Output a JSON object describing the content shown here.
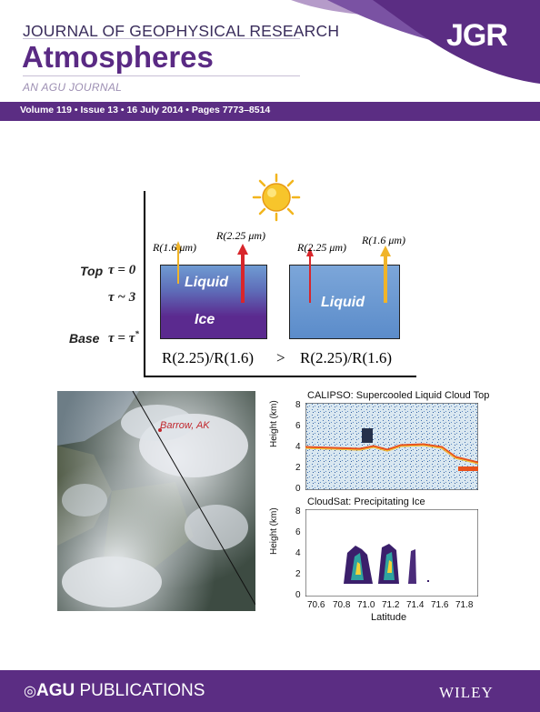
{
  "header": {
    "journal_title": "JOURNAL OF GEOPHYSICAL RESEARCH",
    "section": "Atmospheres",
    "tagline": "AN AGU JOURNAL",
    "badge": "JGR",
    "issue_info": "Volume 119 • Issue 13 • 16 July 2014 • Pages 7773–8514"
  },
  "figure": {
    "arrows": {
      "left_a": "R(1.6 μm)",
      "left_b": "R(2.25 μm)",
      "right_a": "R(2.25 μm)",
      "right_b": "R(1.6 μm)"
    },
    "levels": {
      "top_label": "Top",
      "top_tau": "τ = 0",
      "mid_tau": "τ ~ 3",
      "base_label": "Base",
      "base_tau": "τ = τ",
      "base_tau_sup": "*"
    },
    "left_box": {
      "upper": "Liquid",
      "lower": "Ice"
    },
    "right_box": {
      "label": "Liquid"
    },
    "ratio_left": "R(2.25)/R(1.6)",
    "ratio_op": ">",
    "ratio_right": "R(2.25)/R(1.6)"
  },
  "satellite": {
    "place_label": "Barrow, AK"
  },
  "plots": {
    "calipso_title": "CALIPSO:  Supercooled Liquid Cloud Top",
    "cloudsat_title": "CloudSat:  Precipitating Ice",
    "ylabel": "Height (km)",
    "xlabel": "Latitude",
    "y_ticks": [
      "0",
      "2",
      "4",
      "6",
      "8"
    ],
    "x_ticks": [
      "70.6",
      "70.8",
      "71.0",
      "71.2",
      "71.4",
      "71.6",
      "71.8"
    ]
  },
  "footer": {
    "publisher_bold": "AGU",
    "publisher_rest": " PUBLICATIONS",
    "wiley": "WILEY"
  },
  "colors": {
    "brand_purple": "#5b2d83",
    "ice_purple": "#5b2a8f",
    "liquid_blue": "#6f9bd2",
    "arrow_orange": "#f0b429",
    "arrow_red": "#d8262b"
  }
}
